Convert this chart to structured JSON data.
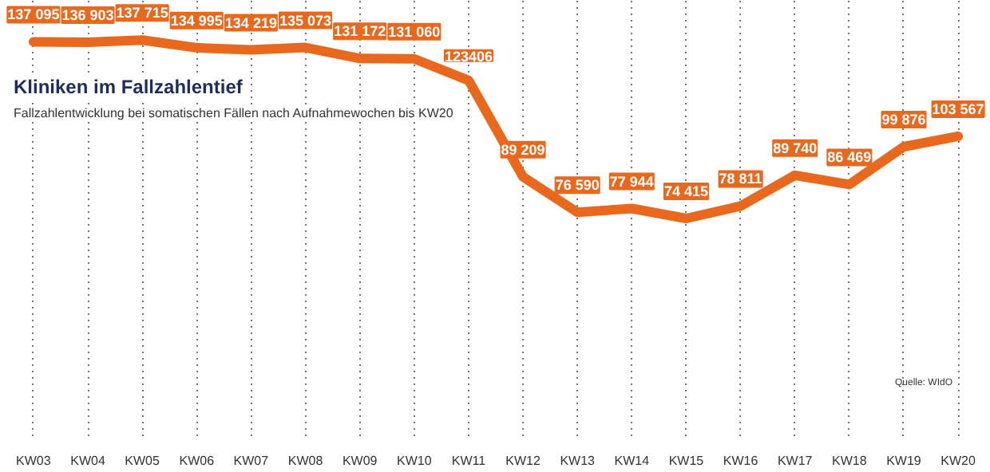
{
  "chart_data": {
    "type": "line",
    "title": "Kliniken im Fallzahlentief",
    "subtitle": "Fallzahlentwicklung bei somatischen Fällen nach Aufnahmewochen bis KW20",
    "categories": [
      "KW03",
      "KW04",
      "KW05",
      "KW06",
      "KW07",
      "KW08",
      "KW09",
      "KW10",
      "KW11",
      "KW12",
      "KW13",
      "KW14",
      "KW15",
      "KW16",
      "KW17",
      "KW18",
      "KW19",
      "KW20"
    ],
    "series": [
      {
        "color": "#e8681e",
        "values": [
          137095,
          136903,
          137715,
          134995,
          134219,
          135073,
          131172,
          131060,
          123406,
          89209,
          76590,
          77944,
          74415,
          78811,
          89740,
          86469,
          99876,
          103567
        ],
        "value_labels": [
          "137 095",
          "136 903",
          "137 715",
          "134 995",
          "134 219",
          "135 073",
          "131 172",
          "131 060",
          "123406",
          "89 209",
          "76 590",
          "77 944",
          "74 415",
          "78 811",
          "89 740",
          "86 469",
          "99 876",
          "103 567"
        ]
      }
    ],
    "grid": "x",
    "marker": "none",
    "line_style": "solid",
    "annotations": [
      "Quelle: WIdO"
    ]
  }
}
